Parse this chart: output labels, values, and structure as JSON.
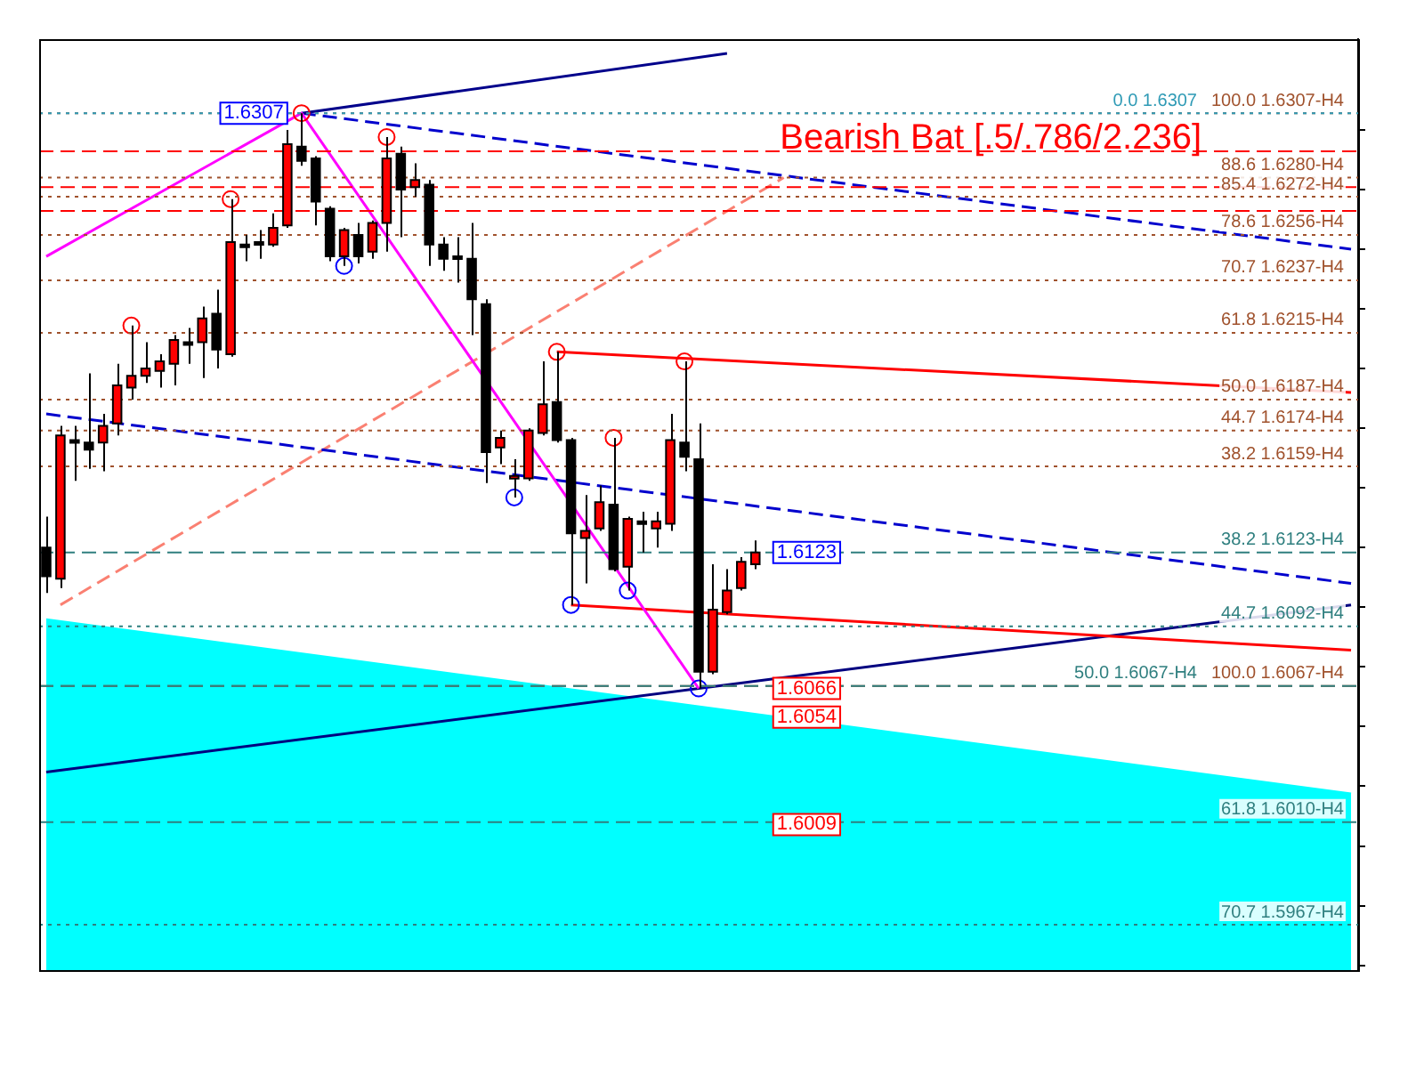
{
  "chart_data": {
    "type": "candlestick",
    "categories": [
      null,
      null,
      null,
      null,
      null,
      null,
      null,
      null,
      null,
      null,
      null,
      null,
      null,
      null,
      null,
      null,
      null,
      null,
      null,
      null,
      null,
      null,
      null,
      null,
      null,
      null,
      null,
      null,
      null,
      null,
      null,
      null,
      null,
      null,
      null,
      null,
      null,
      null,
      null,
      null,
      null,
      null,
      null,
      null,
      null,
      null,
      null,
      null,
      null,
      null,
      null,
      null,
      null,
      null,
      null,
      null,
      null,
      null,
      null,
      null,
      null,
      null,
      null,
      null,
      null,
      null,
      null,
      null,
      null,
      null,
      null,
      null,
      null,
      null,
      null,
      null,
      null,
      null,
      null,
      null,
      null,
      null,
      null,
      null,
      null,
      null,
      null,
      null,
      null,
      null,
      null,
      null,
      null
    ],
    "ohlc": [
      [
        1.6125,
        1.6138,
        1.6106,
        1.6113
      ],
      [
        1.6112,
        1.6176,
        1.6108,
        1.6172
      ],
      [
        1.617,
        1.6176,
        1.6153,
        1.6169
      ],
      [
        1.6169,
        1.6198,
        1.6158,
        1.6166
      ],
      [
        1.6169,
        1.6181,
        1.6157,
        1.6176
      ],
      [
        1.6177,
        1.6202,
        1.6172,
        1.6193
      ],
      [
        1.6192,
        1.6218,
        1.6187,
        1.6197
      ],
      [
        1.6197,
        1.6211,
        1.6194,
        1.62
      ],
      [
        1.6199,
        1.6206,
        1.6192,
        1.6203
      ],
      [
        1.6202,
        1.6214,
        1.6193,
        1.6212
      ],
      [
        1.6211,
        1.6217,
        1.6202,
        1.621
      ],
      [
        1.6211,
        1.6226,
        1.6196,
        1.6221
      ],
      [
        1.6223,
        1.6233,
        1.62,
        1.6208
      ],
      [
        1.6206,
        1.6271,
        1.6205,
        1.6253
      ],
      [
        1.6252,
        1.6256,
        1.6245,
        1.6251
      ],
      [
        1.6252,
        1.6258,
        1.6246,
        1.6253
      ],
      [
        1.6252,
        1.6265,
        1.6251,
        1.6259
      ],
      [
        1.626,
        1.63,
        1.6259,
        1.6294
      ],
      [
        1.6293,
        1.6307,
        1.6285,
        1.6287
      ],
      [
        1.6288,
        1.6289,
        1.626,
        1.627
      ],
      [
        1.6267,
        1.6268,
        1.6245,
        1.6247
      ],
      [
        1.6247,
        1.6259,
        1.6243,
        1.6258
      ],
      [
        1.6256,
        1.6261,
        1.6244,
        1.6247
      ],
      [
        1.6249,
        1.6262,
        1.6246,
        1.6261
      ],
      [
        1.6261,
        1.6297,
        1.6249,
        1.6288
      ],
      [
        1.629,
        1.6293,
        1.6255,
        1.6275
      ],
      [
        1.6276,
        1.6286,
        1.6272,
        1.6279
      ],
      [
        1.6277,
        1.6279,
        1.6243,
        1.6252
      ],
      [
        1.6252,
        1.6255,
        1.6241,
        1.6246
      ],
      [
        1.6247,
        1.6255,
        1.6236,
        1.6246
      ],
      [
        1.6246,
        1.6261,
        1.6214,
        1.6229
      ],
      [
        1.6227,
        1.6229,
        1.6152,
        1.6165
      ],
      [
        1.6167,
        1.6174,
        1.616,
        1.6171
      ],
      [
        1.6154,
        1.6162,
        1.6146,
        1.6155
      ],
      [
        1.6154,
        1.6175,
        1.6153,
        1.6174
      ],
      [
        1.6173,
        1.6203,
        1.6172,
        1.6185
      ],
      [
        1.6186,
        1.6207,
        1.6169,
        1.617
      ],
      [
        1.617,
        1.6171,
        1.6101,
        1.6131
      ],
      [
        1.6129,
        1.6147,
        1.611,
        1.6132
      ],
      [
        1.6133,
        1.6151,
        1.6132,
        1.6144
      ],
      [
        1.6143,
        1.6171,
        1.6115,
        1.6116
      ],
      [
        1.6117,
        1.6138,
        1.6107,
        1.6137
      ],
      [
        1.6135,
        1.614,
        1.6123,
        1.6136
      ],
      [
        1.6133,
        1.614,
        1.6125,
        1.6136
      ],
      [
        1.6135,
        1.6181,
        1.6132,
        1.617
      ],
      [
        1.6169,
        1.6203,
        1.6157,
        1.6163
      ],
      [
        1.6162,
        1.6177,
        1.6066,
        1.6073
      ],
      [
        1.6073,
        1.6118,
        1.6072,
        1.6099
      ],
      [
        1.6098,
        1.6116,
        1.6097,
        1.6107
      ],
      [
        1.6108,
        1.6121,
        1.6107,
        1.6119
      ],
      [
        1.6118,
        1.6128,
        1.6116,
        1.6123
      ],
      null,
      null,
      null,
      null,
      null,
      null,
      null,
      null,
      null,
      null,
      null,
      null,
      null,
      null,
      null,
      null,
      null,
      null,
      null,
      null,
      null,
      null,
      null,
      null,
      null,
      null,
      null,
      null,
      null,
      null,
      null,
      null,
      null,
      null,
      null,
      null,
      null,
      null,
      null,
      null,
      null,
      null
    ],
    "colors": [
      "#000000",
      "#ff0000",
      "#000000",
      "#000000",
      "#ff0000",
      "#ff0000",
      "#ff0000",
      "#ff0000",
      "#ff0000",
      "#ff0000",
      "#000000",
      "#ff0000",
      "#000000",
      "#ff0000",
      "#000000",
      "#000000",
      "#ff0000",
      "#ff0000",
      "#000000",
      "#000000",
      "#000000",
      "#ff0000",
      "#000000",
      "#ff0000",
      "#ff0000",
      "#000000",
      "#ff0000",
      "#000000",
      "#000000",
      "#000000",
      "#000000",
      "#000000",
      "#ff0000",
      "#ff0000",
      "#ff0000",
      "#ff0000",
      "#000000",
      "#000000",
      "#ff0000",
      "#ff0000",
      "#000000",
      "#ff0000",
      "#000000",
      "#ff0000",
      "#ff0000",
      "#000000",
      "#000000",
      "#ff0000",
      "#ff0000",
      "#ff0000",
      "#ff0000",
      null,
      null,
      null,
      null,
      null,
      null,
      null,
      null,
      null,
      null,
      null,
      null,
      null,
      null,
      null,
      null,
      null,
      null,
      null,
      null,
      null,
      null,
      null,
      null,
      null,
      null,
      null,
      null,
      null,
      null,
      null,
      null,
      null,
      null,
      null,
      null,
      null,
      null,
      null,
      null,
      null,
      null
    ],
    "series": [
      {
        "type": "area",
        "color": "#00ffff",
        "values": [
          1.6095,
          null,
          null,
          null,
          null,
          null,
          null,
          null,
          null,
          null,
          null,
          null,
          null,
          null,
          null,
          null,
          null,
          null,
          null,
          null,
          null,
          null,
          null,
          null,
          null,
          null,
          null,
          null,
          null,
          null,
          null,
          null,
          null,
          null,
          null,
          null,
          null,
          null,
          null,
          null,
          null,
          null,
          null,
          null,
          null,
          null,
          null,
          null,
          null,
          null,
          null,
          null,
          null,
          null,
          null,
          null,
          null,
          null,
          null,
          null,
          null,
          null,
          null,
          null,
          null,
          null,
          null,
          null,
          null,
          null,
          null,
          null,
          null,
          null,
          null,
          null,
          null,
          null,
          null,
          null,
          null,
          null,
          null,
          null,
          null,
          null,
          null,
          null,
          null,
          null,
          null,
          null,
          1.6022
        ]
      },
      {
        "type": "line",
        "color": "#ff00ff",
        "line_style": "solid",
        "values": [
          1.6247,
          null,
          null,
          null,
          null,
          null,
          null,
          null,
          null,
          null,
          null,
          null,
          null,
          null,
          null,
          null,
          null,
          null,
          1.6307,
          null,
          null,
          null,
          null,
          null,
          null,
          null,
          null,
          null,
          null,
          null,
          null,
          null,
          null,
          null,
          null,
          null,
          null,
          null,
          null,
          null,
          null,
          null,
          null,
          null,
          null,
          null,
          1.6066,
          null,
          null,
          null,
          null,
          null,
          null,
          null,
          null,
          null,
          null,
          null,
          null,
          null,
          null,
          null,
          null,
          null,
          null,
          null,
          null,
          null,
          null,
          null,
          null,
          null,
          null,
          null,
          null,
          null,
          null,
          null,
          null,
          null,
          null,
          null,
          null,
          null,
          null,
          null,
          null,
          null,
          null,
          null,
          null,
          null,
          null
        ]
      },
      {
        "type": "line",
        "color": "#ff0000",
        "line_style": "solid",
        "values": [
          null,
          null,
          null,
          null,
          null,
          null,
          null,
          null,
          null,
          null,
          null,
          null,
          null,
          null,
          null,
          null,
          null,
          null,
          null,
          null,
          null,
          null,
          null,
          null,
          null,
          null,
          null,
          null,
          null,
          null,
          null,
          null,
          null,
          null,
          null,
          null,
          1.6207,
          null,
          null,
          null,
          null,
          null,
          null,
          null,
          null,
          null,
          null,
          null,
          null,
          null,
          null,
          null,
          null,
          null,
          null,
          null,
          null,
          null,
          null,
          null,
          null,
          null,
          null,
          null,
          null,
          null,
          null,
          null,
          null,
          null,
          null,
          null,
          null,
          null,
          null,
          null,
          null,
          null,
          null,
          null,
          null,
          null,
          null,
          null,
          null,
          null,
          null,
          null,
          null,
          null,
          null,
          null,
          1.619
        ]
      },
      {
        "type": "line",
        "color": "#ff0000",
        "line_style": "solid",
        "values": [
          null,
          null,
          null,
          null,
          null,
          null,
          null,
          null,
          null,
          null,
          null,
          null,
          null,
          null,
          null,
          null,
          null,
          null,
          null,
          null,
          null,
          null,
          null,
          null,
          null,
          null,
          null,
          null,
          null,
          null,
          null,
          null,
          null,
          null,
          null,
          null,
          null,
          1.6101,
          null,
          null,
          null,
          null,
          null,
          null,
          null,
          null,
          null,
          null,
          null,
          null,
          null,
          null,
          null,
          null,
          null,
          null,
          null,
          null,
          null,
          null,
          null,
          null,
          null,
          null,
          null,
          null,
          null,
          null,
          null,
          null,
          null,
          null,
          null,
          null,
          null,
          null,
          null,
          null,
          null,
          null,
          null,
          null,
          null,
          null,
          null,
          null,
          null,
          null,
          null,
          null,
          null,
          null,
          1.6082
        ]
      },
      {
        "type": "line",
        "color": "#000080",
        "line_style": "solid",
        "values": [
          1.6031,
          null,
          null,
          null,
          null,
          null,
          null,
          null,
          null,
          null,
          null,
          null,
          null,
          null,
          null,
          null,
          null,
          null,
          null,
          null,
          null,
          null,
          null,
          null,
          null,
          null,
          null,
          null,
          null,
          null,
          null,
          null,
          null,
          null,
          null,
          null,
          null,
          null,
          null,
          null,
          null,
          null,
          null,
          null,
          null,
          null,
          null,
          null,
          null,
          null,
          null,
          null,
          null,
          null,
          null,
          null,
          null,
          null,
          null,
          null,
          null,
          null,
          null,
          null,
          null,
          null,
          null,
          null,
          null,
          null,
          null,
          null,
          null,
          null,
          null,
          null,
          null,
          null,
          null,
          null,
          null,
          null,
          null,
          null,
          null,
          null,
          null,
          null,
          null,
          null,
          null,
          null,
          1.6101
        ]
      },
      {
        "type": "line",
        "color": "#00008b",
        "line_style": "solid",
        "values": [
          null,
          null,
          null,
          null,
          null,
          null,
          null,
          null,
          null,
          null,
          null,
          null,
          null,
          null,
          null,
          null,
          null,
          null,
          1.6307,
          null,
          null,
          null,
          null,
          null,
          null,
          null,
          null,
          null,
          null,
          null,
          null,
          null,
          null,
          null,
          null,
          null,
          null,
          null,
          null,
          null,
          null,
          null,
          null,
          null,
          null,
          null,
          null,
          null,
          1.6332,
          null,
          null,
          null,
          null,
          null,
          null,
          null,
          null,
          null,
          null,
          null,
          null,
          null,
          null,
          null,
          null,
          null,
          null,
          null,
          null,
          null,
          null,
          null,
          null,
          null,
          null,
          null,
          null,
          null,
          null,
          null,
          null,
          null,
          null,
          null,
          null,
          null,
          null,
          null,
          null,
          null,
          null,
          null,
          null
        ]
      },
      {
        "type": "line",
        "color": "#0000cd",
        "line_style": "dashed",
        "values": [
          null,
          null,
          null,
          null,
          null,
          null,
          null,
          null,
          null,
          null,
          null,
          null,
          null,
          null,
          null,
          null,
          null,
          null,
          1.6307,
          null,
          null,
          null,
          null,
          null,
          null,
          null,
          null,
          null,
          null,
          null,
          null,
          null,
          null,
          null,
          null,
          null,
          null,
          null,
          null,
          null,
          null,
          null,
          null,
          null,
          null,
          null,
          null,
          null,
          null,
          null,
          null,
          null,
          null,
          null,
          null,
          null,
          null,
          null,
          null,
          null,
          null,
          null,
          null,
          null,
          null,
          null,
          null,
          null,
          null,
          null,
          null,
          null,
          null,
          null,
          null,
          null,
          null,
          null,
          null,
          null,
          null,
          null,
          null,
          null,
          null,
          null,
          null,
          null,
          null,
          null,
          null,
          null,
          1.625
        ]
      },
      {
        "type": "line",
        "color": "#0000cd",
        "line_style": "dashed",
        "values": [
          1.6181,
          null,
          null,
          null,
          null,
          null,
          null,
          null,
          null,
          null,
          null,
          null,
          null,
          null,
          null,
          null,
          null,
          null,
          null,
          null,
          null,
          null,
          null,
          null,
          null,
          null,
          null,
          null,
          null,
          null,
          null,
          null,
          null,
          null,
          null,
          null,
          null,
          null,
          null,
          null,
          null,
          null,
          null,
          null,
          null,
          null,
          null,
          null,
          null,
          null,
          null,
          null,
          null,
          null,
          null,
          null,
          null,
          null,
          null,
          null,
          null,
          null,
          null,
          null,
          null,
          null,
          null,
          null,
          null,
          null,
          null,
          null,
          null,
          null,
          null,
          null,
          null,
          null,
          null,
          null,
          null,
          null,
          null,
          null,
          null,
          null,
          null,
          null,
          null,
          null,
          null,
          null,
          1.611
        ]
      },
      {
        "type": "line",
        "color": "#fa8072",
        "line_style": "dashed",
        "values": [
          null,
          1.6101,
          null,
          null,
          null,
          null,
          null,
          null,
          null,
          null,
          null,
          null,
          null,
          null,
          null,
          null,
          null,
          null,
          null,
          null,
          null,
          null,
          null,
          null,
          null,
          null,
          null,
          null,
          null,
          null,
          null,
          null,
          null,
          null,
          null,
          null,
          null,
          null,
          null,
          null,
          null,
          null,
          null,
          null,
          null,
          null,
          null,
          null,
          null,
          null,
          null,
          null,
          1.628,
          null,
          null,
          null,
          null,
          null,
          null,
          null,
          null,
          null,
          null,
          null,
          null,
          null,
          null,
          null,
          null,
          null,
          null,
          null,
          null,
          null,
          null,
          null,
          null,
          null,
          null,
          null,
          null,
          null,
          null,
          null,
          null,
          null,
          null,
          null,
          null,
          null,
          null,
          null,
          null
        ]
      },
      {
        "type": "scatter",
        "marker": "circle",
        "color": "#ff0000",
        "values": [
          null,
          null,
          null,
          null,
          null,
          null,
          1.6218,
          null,
          null,
          null,
          null,
          null,
          null,
          1.6271,
          null,
          null,
          null,
          null,
          1.6307,
          null,
          null,
          null,
          null,
          null,
          1.6297,
          null,
          null,
          null,
          null,
          null,
          null,
          null,
          null,
          null,
          null,
          null,
          1.6207,
          null,
          null,
          null,
          1.6171,
          null,
          null,
          null,
          null,
          1.6203,
          null,
          null,
          null,
          null,
          null,
          null,
          null,
          null,
          null,
          null,
          null,
          null,
          null,
          null,
          null,
          null,
          null,
          null,
          null,
          null,
          null,
          null,
          null,
          null,
          null,
          null,
          null,
          null,
          null,
          null,
          null,
          null,
          null,
          null,
          null,
          null,
          null,
          null,
          null,
          null,
          null,
          null,
          null,
          null,
          null,
          null,
          null
        ]
      },
      {
        "type": "scatter",
        "marker": "circle",
        "color": "#0000ff",
        "values": [
          null,
          null,
          null,
          null,
          null,
          null,
          null,
          null,
          null,
          null,
          null,
          null,
          null,
          null,
          null,
          null,
          null,
          null,
          null,
          null,
          null,
          1.6243,
          null,
          null,
          null,
          null,
          null,
          null,
          null,
          null,
          null,
          null,
          null,
          1.6146,
          null,
          null,
          null,
          1.6101,
          null,
          null,
          null,
          1.6107,
          null,
          null,
          null,
          null,
          1.6066,
          null,
          null,
          null,
          null,
          null,
          null,
          null,
          null,
          null,
          null,
          null,
          null,
          null,
          null,
          null,
          null,
          null,
          null,
          null,
          null,
          null,
          null,
          null,
          null,
          null,
          null,
          null,
          null,
          null,
          null,
          null,
          null,
          null,
          null,
          null,
          null,
          null,
          null,
          null,
          null,
          null,
          null,
          null,
          null,
          null,
          null
        ]
      }
    ],
    "ylim": [
      1.5948,
      1.6338
    ],
    "yticks": [
      {
        "value": 1.595,
        "label": null
      },
      {
        "value": 1.5975,
        "label": null
      },
      {
        "value": 1.6,
        "label": null
      },
      {
        "value": 1.6025,
        "label": null
      },
      {
        "value": 1.605,
        "label": null
      },
      {
        "value": 1.6075,
        "label": null
      },
      {
        "value": 1.61,
        "label": null
      },
      {
        "value": 1.6125,
        "label": null
      },
      {
        "value": 1.615,
        "label": null
      },
      {
        "value": 1.6175,
        "label": null
      },
      {
        "value": 1.62,
        "label": null
      },
      {
        "value": 1.6225,
        "label": null
      },
      {
        "value": 1.625,
        "label": null
      },
      {
        "value": 1.6275,
        "label": null
      },
      {
        "value": 1.63,
        "label": null
      }
    ],
    "ref_lines": [
      {
        "axis": "y",
        "value": 1.6307,
        "label": "100.0 1.6307-H4",
        "color": "#a0522d",
        "line_style": "dotted"
      },
      {
        "axis": "y",
        "value": 1.6307,
        "label": "0.0 1.6307",
        "color": "#2e9ab5",
        "line_style": "dotted"
      },
      {
        "axis": "y",
        "value": 1.6291,
        "label": null,
        "color": "#ff0000",
        "line_style": "dashed"
      },
      {
        "axis": "y",
        "value": 1.628,
        "label": "88.6 1.6280-H4",
        "color": "#a0522d",
        "line_style": "dotted"
      },
      {
        "axis": "y",
        "value": 1.6276,
        "label": null,
        "color": "#ff0000",
        "line_style": "dashed"
      },
      {
        "axis": "y",
        "value": 1.6272,
        "label": "85.4 1.6272-H4",
        "color": "#a0522d",
        "line_style": "dotted"
      },
      {
        "axis": "y",
        "value": 1.6266,
        "label": null,
        "color": "#ff0000",
        "line_style": "dashed"
      },
      {
        "axis": "y",
        "value": 1.6256,
        "label": "78.6 1.6256-H4",
        "color": "#a0522d",
        "line_style": "dotted"
      },
      {
        "axis": "y",
        "value": 1.6237,
        "label": "70.7 1.6237-H4",
        "color": "#a0522d",
        "line_style": "dotted"
      },
      {
        "axis": "y",
        "value": 1.6215,
        "label": "61.8 1.6215-H4",
        "color": "#a0522d",
        "line_style": "dotted"
      },
      {
        "axis": "y",
        "value": 1.6187,
        "label": "50.0 1.6187-H4",
        "color": "#a0522d",
        "line_style": "dotted"
      },
      {
        "axis": "y",
        "value": 1.6174,
        "label": "44.7 1.6174-H4",
        "color": "#a0522d",
        "line_style": "dotted"
      },
      {
        "axis": "y",
        "value": 1.6159,
        "label": "38.2 1.6159-H4",
        "color": "#a0522d",
        "line_style": "dotted"
      },
      {
        "axis": "y",
        "value": 1.6123,
        "label": "38.2 1.6123-H4",
        "color": "#2f7f7f",
        "line_style": "dashed"
      },
      {
        "axis": "y",
        "value": 1.6092,
        "label": "44.7 1.6092-H4",
        "color": "#2f7f7f",
        "line_style": "dotted"
      },
      {
        "axis": "y",
        "value": 1.6067,
        "label": "100.0 1.6067-H4",
        "color": "#a0522d",
        "line_style": "dashed"
      },
      {
        "axis": "y",
        "value": 1.6067,
        "label": "50.0 1.6067-H4",
        "color": "#2f7f7f",
        "line_style": "dashed"
      },
      {
        "axis": "y",
        "value": 1.601,
        "label": "61.8 1.6010-H4",
        "color": "#2f7f7f",
        "line_style": "dashed"
      },
      {
        "axis": "y",
        "value": 1.5967,
        "label": "70.7 1.5967-H4",
        "color": "#2f7f7f",
        "line_style": "dotted"
      }
    ],
    "annotations": [
      "Bearish Bat [.5/.786/2.236]",
      {
        "text": "1.6307",
        "y": 1.6307
      },
      {
        "text": "1.6123",
        "y": 1.6123
      },
      {
        "text": "1.6066",
        "y": 1.6066
      },
      {
        "text": "1.6054",
        "y": 1.6054
      },
      {
        "text": "1.6009",
        "y": 1.6009
      }
    ],
    "legend": false,
    "grid": false
  }
}
